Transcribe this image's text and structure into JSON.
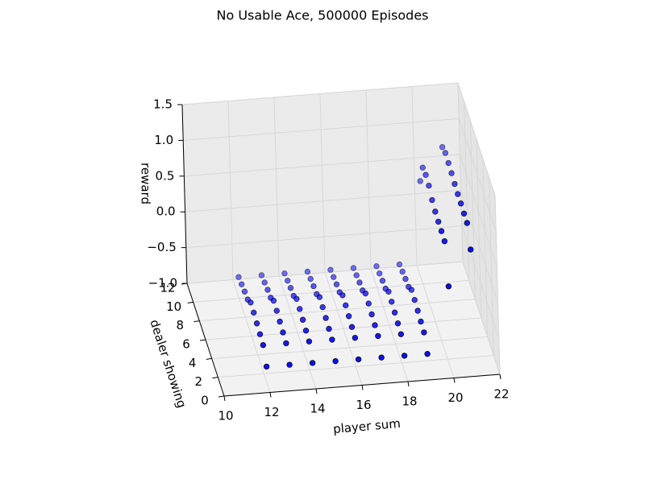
{
  "chart_data": {
    "type": "scatter3d",
    "title": "No Usable Ace, 500000 Episodes",
    "xlabel": "player sum",
    "ylabel": "dealer showing",
    "zlabel": "reward",
    "x": [
      12,
      13,
      14,
      15,
      16,
      17,
      18,
      19,
      20,
      21
    ],
    "y": [
      1,
      2,
      3,
      4,
      5,
      6,
      7,
      8,
      9,
      10
    ],
    "z": [
      [
        -0.77,
        -0.77,
        -0.77,
        -0.77,
        -0.77,
        -0.77,
        -0.77,
        -0.77,
        0.15,
        0.64
      ],
      [
        -0.6,
        -0.6,
        -0.6,
        -0.6,
        -0.6,
        -0.6,
        -0.6,
        -0.6,
        0.65,
        0.88
      ],
      [
        -0.58,
        -0.58,
        -0.58,
        -0.58,
        -0.58,
        -0.58,
        -0.58,
        -0.58,
        0.66,
        0.88
      ],
      [
        -0.56,
        -0.56,
        -0.56,
        -0.56,
        -0.56,
        -0.56,
        -0.56,
        -0.56,
        0.66,
        0.89
      ],
      [
        -0.54,
        -0.54,
        -0.54,
        -0.54,
        -0.54,
        -0.54,
        -0.54,
        -0.54,
        0.67,
        0.89
      ],
      [
        -0.53,
        -0.53,
        -0.53,
        -0.53,
        -0.53,
        -0.53,
        -0.53,
        -0.53,
        0.7,
        0.9
      ],
      [
        -0.62,
        -0.62,
        -0.62,
        -0.62,
        -0.62,
        -0.62,
        -0.62,
        -0.62,
        0.77,
        0.92
      ],
      [
        -0.64,
        -0.64,
        -0.64,
        -0.64,
        -0.64,
        -0.64,
        -0.64,
        -0.64,
        0.79,
        0.93
      ],
      [
        -0.67,
        -0.67,
        -0.67,
        -0.67,
        -0.67,
        -0.67,
        -0.67,
        -0.67,
        0.76,
        0.94
      ],
      [
        -0.7,
        -0.7,
        -0.7,
        -0.7,
        -0.7,
        -0.7,
        -0.7,
        -0.7,
        0.44,
        0.89
      ]
    ],
    "color": "#0000ff",
    "xlim": [
      10,
      22
    ],
    "ylim": [
      0,
      12
    ],
    "zlim": [
      -1,
      1.5
    ],
    "xticks": [
      10,
      12,
      14,
      16,
      18,
      20,
      22
    ],
    "yticks": [
      0,
      2,
      4,
      6,
      8,
      10,
      12
    ],
    "zticks": [
      {
        "value": -1,
        "label": "−1.0"
      },
      {
        "value": -0.5,
        "label": "−0.5"
      },
      {
        "value": 0,
        "label": "0.0"
      },
      0.5,
      {
        "value": 1,
        "label": "1.0"
      },
      1.5
    ],
    "grid": true
  }
}
